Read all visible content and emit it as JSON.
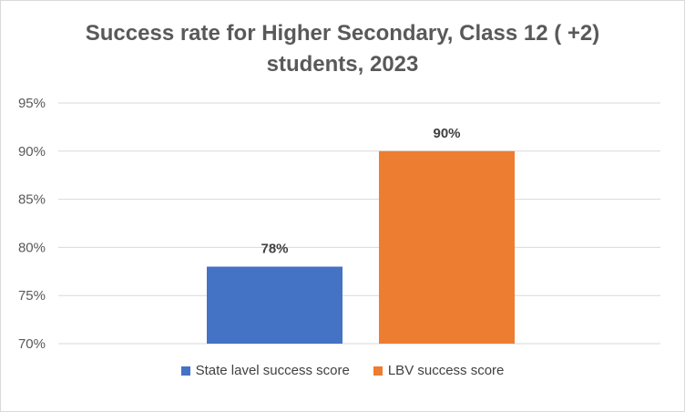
{
  "chart_data": {
    "type": "bar",
    "title_lines": [
      "Success rate for Higher Secondary, Class 12 ( +2)",
      "students, 2023"
    ],
    "categories": [
      "State lavel success score",
      "LBV success score"
    ],
    "values": [
      78,
      90
    ],
    "value_labels": [
      "78%",
      "90%"
    ],
    "colors": [
      "#4472c4",
      "#ed7d31"
    ],
    "ylim": [
      70,
      95
    ],
    "yticks": [
      70,
      75,
      80,
      85,
      90,
      95
    ],
    "ytick_labels": [
      "70%",
      "75%",
      "80%",
      "85%",
      "90%",
      "95%"
    ],
    "grid": true,
    "legend_position": "bottom",
    "xlabel": "",
    "ylabel": ""
  }
}
